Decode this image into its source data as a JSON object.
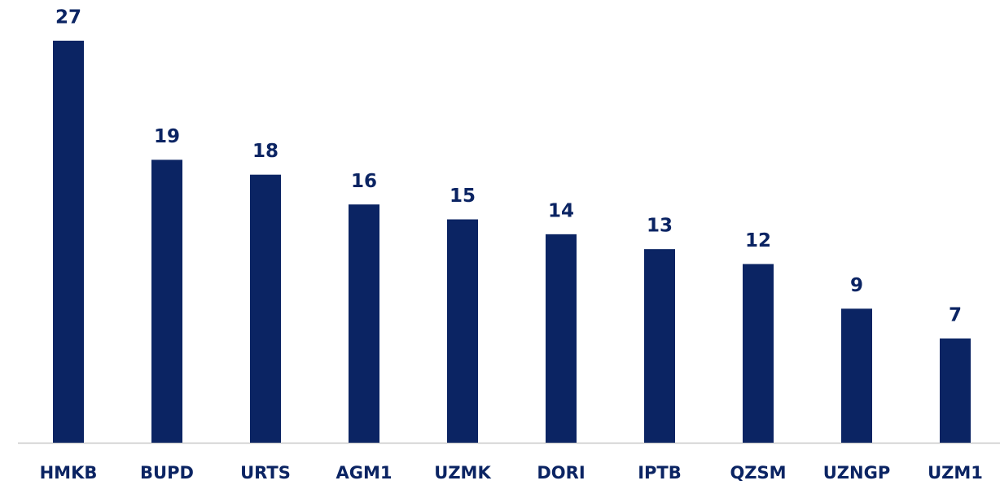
{
  "chart_data": {
    "type": "bar",
    "categories": [
      "HMKB",
      "BUPD",
      "URTS",
      "AGM1",
      "UZMK",
      "DORI",
      "IPTB",
      "QZSM",
      "UZNGP",
      "UZM1"
    ],
    "values": [
      27,
      19,
      18,
      16,
      15,
      14,
      13,
      12,
      9,
      7
    ],
    "color": "#0b2463",
    "ylim": [
      0,
      27
    ]
  }
}
